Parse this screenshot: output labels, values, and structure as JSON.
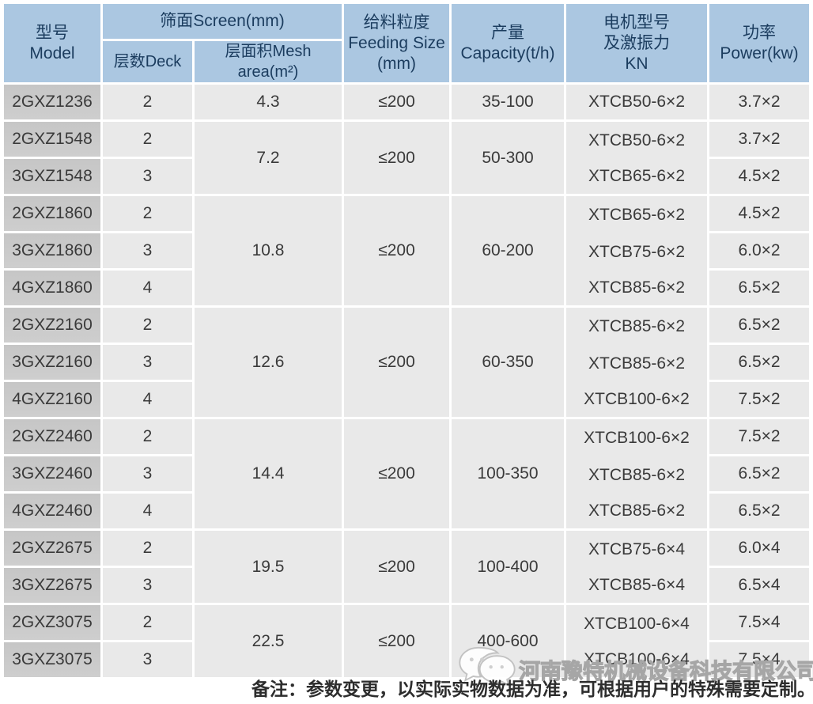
{
  "header": {
    "model": [
      "型号",
      "Model"
    ],
    "screen_group": "筛面Screen(mm)",
    "deck": "层数Deck",
    "mesh_area": "层面积Mesh area(m²)",
    "feeding": [
      "给料粒度",
      "Feeding Size",
      "(mm)"
    ],
    "capacity": [
      "产量",
      "Capacity(t/h)"
    ],
    "motor": [
      "电机型号",
      "及激振力",
      "KN"
    ],
    "power": [
      "功率",
      "Power(kw)"
    ]
  },
  "groups": [
    {
      "mesh": "4.3",
      "feed": "≤200",
      "cap": "35-100",
      "rows": [
        {
          "model": "2GXZ1236",
          "deck": "2",
          "motor": "XTCB50-6×2",
          "power": "3.7×2"
        }
      ]
    },
    {
      "mesh": "7.2",
      "feed": "≤200",
      "cap": "50-300",
      "rows": [
        {
          "model": "2GXZ1548",
          "deck": "2",
          "motor": "XTCB50-6×2",
          "power": "3.7×2"
        },
        {
          "model": "3GXZ1548",
          "deck": "3",
          "motor": "XTCB65-6×2",
          "power": "4.5×2"
        }
      ]
    },
    {
      "mesh": "10.8",
      "feed": "≤200",
      "cap": "60-200",
      "rows": [
        {
          "model": "2GXZ1860",
          "deck": "2",
          "motor": "XTCB65-6×2",
          "power": "4.5×2"
        },
        {
          "model": "3GXZ1860",
          "deck": "3",
          "motor": "XTCB75-6×2",
          "power": "6.0×2"
        },
        {
          "model": "4GXZ1860",
          "deck": "4",
          "motor": "XTCB85-6×2",
          "power": "6.5×2"
        }
      ]
    },
    {
      "mesh": "12.6",
      "feed": "≤200",
      "cap": "60-350",
      "rows": [
        {
          "model": "2GXZ2160",
          "deck": "2",
          "motor": "XTCB85-6×2",
          "power": "6.5×2"
        },
        {
          "model": "3GXZ2160",
          "deck": "3",
          "motor": "XTCB85-6×2",
          "power": "6.5×2"
        },
        {
          "model": "4GXZ2160",
          "deck": "4",
          "motor": "XTCB100-6×2",
          "power": "7.5×2"
        }
      ]
    },
    {
      "mesh": "14.4",
      "feed": "≤200",
      "cap": "100-350",
      "rows": [
        {
          "model": "2GXZ2460",
          "deck": "2",
          "motor": "XTCB100-6×2",
          "power": "7.5×2"
        },
        {
          "model": "3GXZ2460",
          "deck": "3",
          "motor": "XTCB85-6×2",
          "power": "6.5×2"
        },
        {
          "model": "4GXZ2460",
          "deck": "4",
          "motor": "XTCB85-6×2",
          "power": "6.5×2"
        }
      ]
    },
    {
      "mesh": "19.5",
      "feed": "≤200",
      "cap": "100-400",
      "rows": [
        {
          "model": "2GXZ2675",
          "deck": "2",
          "motor": "XTCB75-6×4",
          "power": "6.0×4"
        },
        {
          "model": "3GXZ2675",
          "deck": "3",
          "motor": "XTCB85-6×4",
          "power": "6.5×4"
        }
      ]
    },
    {
      "mesh": "22.5",
      "feed": "≤200",
      "cap": "400-600",
      "rows": [
        {
          "model": "2GXZ3075",
          "deck": "2",
          "motor": "XTCB100-6×4",
          "power": "7.5×4"
        },
        {
          "model": "3GXZ3075",
          "deck": "3",
          "motor": "XTCB100-6×4",
          "power": "7.5×4"
        }
      ]
    }
  ],
  "footer": {
    "note": "备注：参数变更，以实际实物数据为准，可根据用户的特殊需要定制。",
    "watermark": "河南豫特机械设备科技有限公司",
    "watermark_icon": "wechat-icon"
  },
  "colors": {
    "header_bg": "#abc7e1",
    "header_text": "#1b3c5e",
    "model_bg": "#c9c9c9",
    "cell_bg": "#e9e9e9",
    "body_text": "#3a3a3a",
    "note_text": "#2d2d2d",
    "watermark": "#a6a6a6"
  }
}
